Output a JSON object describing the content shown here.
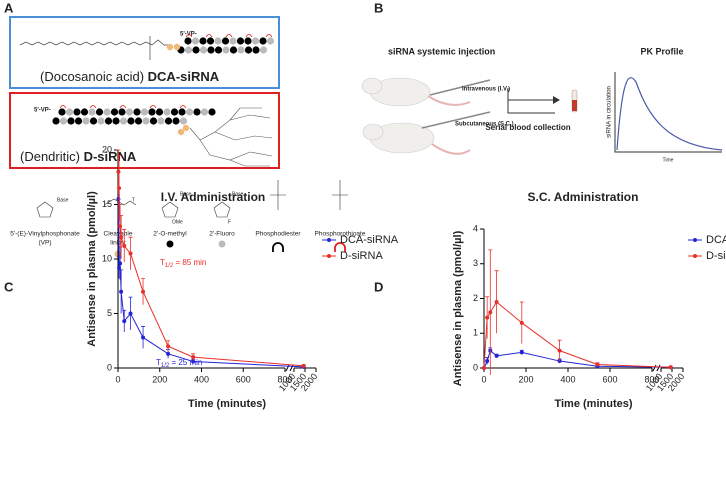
{
  "panel_labels": [
    "A",
    "B",
    "C",
    "D"
  ],
  "panel_a": {
    "vp_tag": "5'-VP-",
    "constructs": [
      {
        "prefix": "(Docosanoic acid) ",
        "name": "DCA-siRNA"
      },
      {
        "prefix": "(Dendritic) ",
        "name": "D-siRNA"
      }
    ],
    "structure_labels": [
      "Base",
      "T",
      "Base",
      "OMe",
      "Base",
      "F"
    ],
    "legend": [
      {
        "lines": [
          "5'-(E)-Vinylphosphonate",
          "(VP)"
        ]
      },
      {
        "lines": [
          "Cleavable",
          "linker"
        ]
      },
      {
        "lines": [
          "2'-O-methyl"
        ]
      },
      {
        "lines": [
          "2'-Fluoro"
        ]
      },
      {
        "lines": [
          "Phosphodiester"
        ]
      },
      {
        "lines": [
          "Phosphorothioate"
        ]
      }
    ]
  },
  "panel_b": {
    "title": "siRNA systemic injection",
    "routes": [
      "Intravenous (I.V.)",
      "Subcutaneous (S.C.)"
    ],
    "collection": "Serial blood collection",
    "pk_title": "PK Profile",
    "pk_ylabel": "siRNA in circulation",
    "pk_xlabel": "Time"
  },
  "chart_data": [
    {
      "type": "line",
      "title": "I.V. Administration",
      "xlabel": "Time (minutes)",
      "ylabel": "Antisense in plasma (pmol/µl)",
      "x": [
        2,
        5,
        10,
        15,
        30,
        60,
        120,
        240,
        360,
        1440
      ],
      "series": [
        {
          "name": "DCA-siRNA",
          "color": "#2424d6",
          "values": [
            15.5,
            9.2,
            9.6,
            7.0,
            4.3,
            5.0,
            2.8,
            1.3,
            0.6,
            0.1
          ],
          "errors": [
            2.5,
            1.0,
            1.5,
            2.0,
            1.0,
            1.5,
            1.0,
            0.4,
            0.2,
            0.05
          ]
        },
        {
          "name": "D-siRNA",
          "color": "#e8302a",
          "values": [
            18,
            16.5,
            13,
            12,
            11.2,
            10.5,
            7,
            2,
            1.0,
            0.2
          ],
          "errors": [
            2,
            3,
            2,
            2,
            1.5,
            1.5,
            1.2,
            0.5,
            0.3,
            0.1
          ]
        }
      ],
      "annotations": [
        {
          "text": "T",
          "sub": "1/2",
          "rest": " = 85 min",
          "color": "#e8302a"
        },
        {
          "text": "T",
          "sub": "1/2",
          "rest": " = 25 min",
          "color": "#2424d6"
        }
      ],
      "xlim": [
        0,
        2000
      ],
      "xbreak": [
        800,
        1000
      ],
      "xticks": [
        0,
        200,
        400,
        600,
        800,
        1000,
        1500,
        2000
      ],
      "ylim": [
        0,
        20
      ],
      "yticks": [
        0,
        5,
        10,
        15,
        20
      ],
      "legend": "right"
    },
    {
      "type": "line",
      "title": "S.C. Administration",
      "xlabel": "Time (minutes)",
      "ylabel": "Antisense in plasma (pmol/µl)",
      "x": [
        0,
        15,
        30,
        60,
        180,
        360,
        540,
        1440
      ],
      "series": [
        {
          "name": "DCA-siRNA",
          "color": "#2424d6",
          "values": [
            0,
            0.2,
            0.5,
            0.35,
            0.45,
            0.2,
            0.05,
            0.02
          ],
          "errors": [
            0,
            0.1,
            0.08,
            0.05,
            0.06,
            0.06,
            0.02,
            0.01
          ]
        },
        {
          "name": "D-siRNA",
          "color": "#e8302a",
          "values": [
            0,
            1.45,
            1.6,
            1.9,
            1.3,
            0.5,
            0.1,
            0.02
          ],
          "errors": [
            0,
            0.6,
            1.8,
            0.9,
            0.6,
            0.3,
            0.05,
            0.01
          ]
        }
      ],
      "annotations": [],
      "xlim": [
        0,
        2000
      ],
      "xbreak": [
        800,
        1000
      ],
      "xticks": [
        0,
        200,
        400,
        600,
        800,
        1000,
        1500,
        2000
      ],
      "ylim": [
        0,
        4
      ],
      "yticks": [
        0,
        1,
        2,
        3,
        4
      ],
      "legend": "right"
    }
  ]
}
